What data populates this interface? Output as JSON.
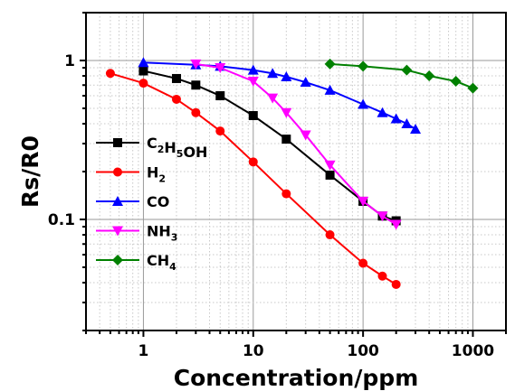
{
  "chart_data": {
    "type": "line",
    "xscale": "log",
    "yscale": "log",
    "xlim": [
      0.3,
      2000
    ],
    "ylim": [
      0.02,
      2
    ],
    "xlabel": "Concentration/ppm",
    "ylabel": "Rs/R0",
    "xticks": [
      {
        "value": 1,
        "label": "1"
      },
      {
        "value": 10,
        "label": "10"
      },
      {
        "value": 100,
        "label": "100"
      },
      {
        "value": 1000,
        "label": "1000"
      }
    ],
    "yticks": [
      {
        "value": 1,
        "label": "1"
      },
      {
        "value": 0.1,
        "label": "0.1"
      }
    ],
    "grid": true,
    "legend_position": "left",
    "series": [
      {
        "name": "C2H5OH",
        "name_parts": [
          [
            "C",
            ""
          ],
          [
            "2",
            "sub"
          ],
          [
            "H",
            ""
          ],
          [
            "5",
            "sub"
          ],
          [
            "OH",
            ""
          ]
        ],
        "color": "#000000",
        "marker": "square",
        "x": [
          1,
          2,
          3,
          5,
          10,
          20,
          50,
          100,
          150,
          200
        ],
        "y": [
          0.86,
          0.77,
          0.7,
          0.6,
          0.45,
          0.32,
          0.19,
          0.13,
          0.105,
          0.098
        ]
      },
      {
        "name": "H2",
        "name_parts": [
          [
            "H",
            ""
          ],
          [
            "2",
            "sub"
          ]
        ],
        "color": "#ff0000",
        "marker": "circle",
        "x": [
          0.5,
          1,
          2,
          3,
          5,
          10,
          20,
          50,
          100,
          150,
          200
        ],
        "y": [
          0.83,
          0.72,
          0.57,
          0.47,
          0.36,
          0.23,
          0.145,
          0.08,
          0.053,
          0.044,
          0.039
        ]
      },
      {
        "name": "CO",
        "name_parts": [
          [
            "CO",
            ""
          ]
        ],
        "color": "#0000ff",
        "marker": "triangle-up",
        "x": [
          1,
          3,
          5,
          10,
          15,
          20,
          30,
          50,
          100,
          150,
          200,
          250,
          300
        ],
        "y": [
          0.97,
          0.94,
          0.92,
          0.87,
          0.83,
          0.79,
          0.73,
          0.65,
          0.53,
          0.47,
          0.43,
          0.4,
          0.37
        ]
      },
      {
        "name": "NH3",
        "name_parts": [
          [
            "NH",
            ""
          ],
          [
            "3",
            "sub"
          ]
        ],
        "color": "#ff00ff",
        "marker": "triangle-down",
        "x": [
          3,
          5,
          10,
          15,
          20,
          30,
          50,
          100,
          150,
          200
        ],
        "y": [
          0.95,
          0.9,
          0.74,
          0.58,
          0.47,
          0.34,
          0.22,
          0.13,
          0.105,
          0.093
        ]
      },
      {
        "name": "CH4",
        "name_parts": [
          [
            "CH",
            ""
          ],
          [
            "4",
            "sub"
          ]
        ],
        "color": "#008000",
        "marker": "diamond",
        "x": [
          50,
          100,
          250,
          400,
          700,
          1000
        ],
        "y": [
          0.95,
          0.92,
          0.87,
          0.8,
          0.74,
          0.67
        ]
      }
    ]
  }
}
